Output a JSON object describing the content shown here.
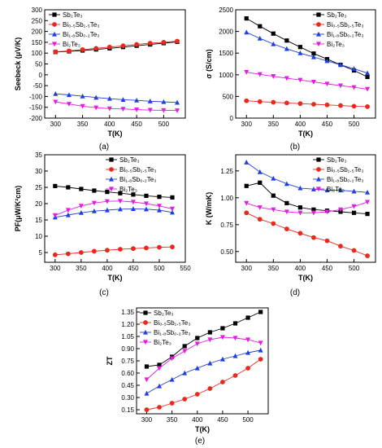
{
  "chart_data": [
    {
      "type": "line",
      "panel_label": "(a)",
      "xlabel": "T(K)",
      "ylabel": "Seebeck (μV/K)",
      "xlim": [
        280,
        540
      ],
      "ylim": [
        -200,
        300
      ],
      "xticks": [
        300,
        350,
        400,
        450,
        500
      ],
      "yticks": [
        -200,
        -150,
        -100,
        -50,
        0,
        50,
        100,
        150,
        200,
        250,
        300
      ],
      "legend_position": "top-left",
      "x": [
        300,
        325,
        350,
        375,
        400,
        425,
        450,
        475,
        500,
        525
      ],
      "series": [
        {
          "name": "Sb₂Te₃",
          "color": "#000000",
          "marker": "square",
          "values": [
            105,
            108,
            112,
            117,
            122,
            128,
            134,
            140,
            146,
            152
          ]
        },
        {
          "name": "Bi₀.₅Sb₁.₅Te₃",
          "color": "#e8291c",
          "marker": "circle",
          "values": [
            106,
            110,
            116,
            122,
            128,
            134,
            140,
            146,
            150,
            155
          ]
        },
        {
          "name": "Bi₁.₈Sb₀.₂Te₃",
          "color": "#1f3fe0",
          "marker": "triangle-up",
          "values": [
            -88,
            -93,
            -99,
            -105,
            -110,
            -115,
            -118,
            -122,
            -125,
            -128
          ]
        },
        {
          "name": "Bi₂Te₃",
          "color": "#e51ce5",
          "marker": "triangle-down",
          "values": [
            -125,
            -135,
            -145,
            -152,
            -156,
            -158,
            -161,
            -163,
            -164,
            -165
          ]
        }
      ]
    },
    {
      "type": "line",
      "panel_label": "(b)",
      "xlabel": "T(K)",
      "ylabel": "σ (S/cm)",
      "xlim": [
        280,
        540
      ],
      "ylim": [
        0,
        2500
      ],
      "xticks": [
        300,
        350,
        400,
        450,
        500
      ],
      "yticks": [
        0,
        500,
        1000,
        1500,
        2000,
        2500
      ],
      "legend_position": "top-right",
      "x": [
        300,
        325,
        350,
        375,
        400,
        425,
        450,
        475,
        500,
        525
      ],
      "series": [
        {
          "name": "Sb₂Te₃",
          "color": "#000000",
          "marker": "square",
          "values": [
            2300,
            2120,
            1950,
            1790,
            1640,
            1490,
            1360,
            1230,
            1100,
            950
          ]
        },
        {
          "name": "Bi₀.₅Sb₁.₅Te₃",
          "color": "#e8291c",
          "marker": "circle",
          "values": [
            400,
            380,
            365,
            350,
            335,
            320,
            305,
            290,
            275,
            265
          ]
        },
        {
          "name": "Bi₁.₈Sb₀.₂Te₃",
          "color": "#1f3fe0",
          "marker": "triangle-up",
          "values": [
            1980,
            1840,
            1710,
            1600,
            1500,
            1410,
            1320,
            1230,
            1140,
            1040
          ]
        },
        {
          "name": "Bi₂Te₃",
          "color": "#e51ce5",
          "marker": "triangle-down",
          "values": [
            1060,
            1010,
            965,
            920,
            880,
            835,
            790,
            750,
            710,
            670
          ]
        }
      ]
    },
    {
      "type": "line",
      "panel_label": "(c)",
      "xlabel": "T(K)",
      "ylabel": "PF(μW/K²cm)",
      "xlim": [
        280,
        550
      ],
      "ylim": [
        2,
        35
      ],
      "xticks": [
        300,
        350,
        400,
        450,
        500,
        550
      ],
      "yticks": [
        5,
        10,
        15,
        20,
        25,
        30,
        35
      ],
      "legend_position": "top-right",
      "x": [
        300,
        325,
        350,
        375,
        400,
        425,
        450,
        475,
        500,
        525
      ],
      "series": [
        {
          "name": "Sb₂Te₃",
          "color": "#000000",
          "marker": "square",
          "values": [
            25.4,
            25.0,
            24.5,
            24.0,
            23.6,
            23.2,
            22.8,
            22.4,
            22.1,
            21.9
          ]
        },
        {
          "name": "Bi₀.₅Sb₁.₅Te₃",
          "color": "#e8291c",
          "marker": "circle",
          "values": [
            4.3,
            4.6,
            5.0,
            5.4,
            5.7,
            6.0,
            6.2,
            6.4,
            6.6,
            6.7
          ]
        },
        {
          "name": "Bi₁.₈Sb₀.₂Te₃",
          "color": "#1f3fe0",
          "marker": "triangle-up",
          "values": [
            15.8,
            16.5,
            17.2,
            17.7,
            18.0,
            18.3,
            18.4,
            18.3,
            18.0,
            17.3
          ]
        },
        {
          "name": "Bi₂Te₃",
          "color": "#e51ce5",
          "marker": "triangle-down",
          "values": [
            16.4,
            18.0,
            19.3,
            20.2,
            20.7,
            20.8,
            20.5,
            20.0,
            19.3,
            18.4
          ]
        }
      ]
    },
    {
      "type": "line",
      "panel_label": "(d)",
      "xlabel": "T(K)",
      "ylabel": "K (W/mK)",
      "xlim": [
        280,
        540
      ],
      "ylim": [
        0.4,
        1.4
      ],
      "xticks": [
        300,
        350,
        400,
        450,
        500
      ],
      "yticks": [
        0.5,
        0.75,
        1.0,
        1.25
      ],
      "legend_position": "top-right",
      "x": [
        300,
        325,
        350,
        375,
        400,
        425,
        450,
        475,
        500,
        525
      ],
      "series": [
        {
          "name": "Sb₂Te₃",
          "color": "#000000",
          "marker": "square",
          "values": [
            1.11,
            1.14,
            1.02,
            0.95,
            0.91,
            0.89,
            0.88,
            0.87,
            0.86,
            0.85
          ]
        },
        {
          "name": "Bi₀.₅Sb₁.₅Te₃",
          "color": "#e8291c",
          "marker": "circle",
          "values": [
            0.86,
            0.8,
            0.76,
            0.71,
            0.67,
            0.63,
            0.6,
            0.55,
            0.51,
            0.46
          ]
        },
        {
          "name": "Bi₁.₈Sb₀.₂Te₃",
          "color": "#1f3fe0",
          "marker": "triangle-up",
          "values": [
            1.33,
            1.24,
            1.18,
            1.13,
            1.09,
            1.08,
            1.07,
            1.07,
            1.06,
            1.05
          ]
        },
        {
          "name": "Bi₂Te₃",
          "color": "#e51ce5",
          "marker": "triangle-down",
          "values": [
            0.95,
            0.91,
            0.89,
            0.87,
            0.86,
            0.86,
            0.87,
            0.89,
            0.92,
            0.96
          ]
        }
      ]
    },
    {
      "type": "line",
      "panel_label": "(e)",
      "xlabel": "T(K)",
      "ylabel": "ZT",
      "xlim": [
        280,
        540
      ],
      "ylim": [
        0.1,
        1.4
      ],
      "xticks": [
        300,
        350,
        400,
        450,
        500
      ],
      "yticks": [
        0.15,
        0.3,
        0.45,
        0.6,
        0.75,
        0.9,
        1.05,
        1.2,
        1.35
      ],
      "legend_position": "top-left",
      "x": [
        300,
        325,
        350,
        375,
        400,
        425,
        450,
        475,
        500,
        525
      ],
      "series": [
        {
          "name": "Sb₂Te₃",
          "color": "#000000",
          "marker": "square",
          "values": [
            0.68,
            0.7,
            0.8,
            0.93,
            1.03,
            1.1,
            1.15,
            1.21,
            1.28,
            1.35
          ]
        },
        {
          "name": "Bi₀.₅Sb₁.₅Te₃",
          "color": "#e8291c",
          "marker": "circle",
          "values": [
            0.15,
            0.18,
            0.23,
            0.28,
            0.34,
            0.41,
            0.49,
            0.57,
            0.66,
            0.77
          ]
        },
        {
          "name": "Bi₁.₈Sb₀.₂Te₃",
          "color": "#1f3fe0",
          "marker": "triangle-up",
          "values": [
            0.35,
            0.44,
            0.52,
            0.6,
            0.66,
            0.72,
            0.77,
            0.81,
            0.85,
            0.88
          ]
        },
        {
          "name": "Bi₂Te₃",
          "color": "#e51ce5",
          "marker": "triangle-down",
          "values": [
            0.52,
            0.66,
            0.78,
            0.87,
            0.96,
            1.01,
            1.04,
            1.03,
            1.01,
            0.97
          ]
        }
      ]
    }
  ]
}
